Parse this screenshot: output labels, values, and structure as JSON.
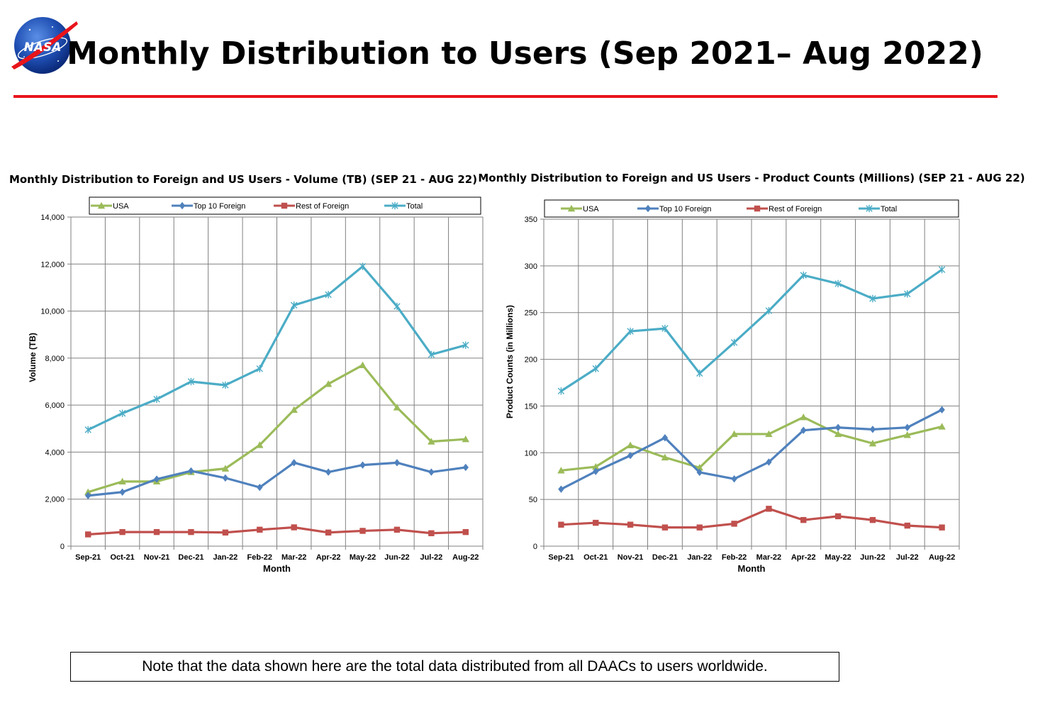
{
  "slide": {
    "title": "Monthly Distribution to Users (Sep 2021– Aug 2022)",
    "logo_text": "NASA",
    "note": "Note that the data shown here are the total data distributed from all DAACs to users worldwide.",
    "accent_color": "#e8141b"
  },
  "chart_data": [
    {
      "type": "line",
      "title": "Monthly Distribution to Foreign and US Users - Volume  (TB) (SEP 21 - AUG 22)",
      "xlabel": "Month",
      "ylabel": "Volume (TB)",
      "ylim": [
        0,
        14000
      ],
      "yticks": [
        0,
        2000,
        4000,
        6000,
        8000,
        10000,
        12000,
        14000
      ],
      "ytick_labels": [
        "0",
        "2,000",
        "4,000",
        "6,000",
        "8,000",
        "10,000",
        "12,000",
        "14,000"
      ],
      "grid": true,
      "legend_position": "top",
      "categories": [
        "Sep-21",
        "Oct-21",
        "Nov-21",
        "Dec-21",
        "Jan-22",
        "Feb-22",
        "Mar-22",
        "Apr-22",
        "May-22",
        "Jun-22",
        "Jul-22",
        "Aug-22"
      ],
      "series": [
        {
          "name": "USA",
          "color": "#9bbb59",
          "marker": "triangle",
          "values": [
            2300,
            2750,
            2750,
            3150,
            3300,
            4300,
            5800,
            6900,
            7700,
            5900,
            4450,
            4550
          ]
        },
        {
          "name": "Top  10 Foreign",
          "color": "#4f81bd",
          "marker": "diamond",
          "values": [
            2150,
            2300,
            2850,
            3200,
            2900,
            2500,
            3550,
            3150,
            3450,
            3550,
            3150,
            3350
          ]
        },
        {
          "name": "Rest of Foreign",
          "color": "#c0504d",
          "marker": "square",
          "values": [
            500,
            600,
            600,
            600,
            580,
            700,
            800,
            580,
            650,
            700,
            550,
            600
          ]
        },
        {
          "name": "Total",
          "color": "#4bacc6",
          "marker": "star",
          "values": [
            4950,
            5650,
            6250,
            7000,
            6850,
            7550,
            10250,
            10700,
            11900,
            10200,
            8150,
            8550
          ]
        }
      ]
    },
    {
      "type": "line",
      "title": "Monthly Distribution to Foreign and US Users - Product Counts (Millions) (SEP 21 - AUG 22)",
      "xlabel": "Month",
      "ylabel": "Product Counts (in Millions)",
      "ylim": [
        0,
        350
      ],
      "yticks": [
        0,
        50,
        100,
        150,
        200,
        250,
        300,
        350
      ],
      "ytick_labels": [
        "0",
        "50",
        "100",
        "150",
        "200",
        "250",
        "300",
        "350"
      ],
      "grid": true,
      "legend_position": "top",
      "categories": [
        "Sep-21",
        "Oct-21",
        "Nov-21",
        "Dec-21",
        "Jan-22",
        "Feb-22",
        "Mar-22",
        "Apr-22",
        "May-22",
        "Jun-22",
        "Jul-22",
        "Aug-22"
      ],
      "series": [
        {
          "name": "USA",
          "color": "#9bbb59",
          "marker": "triangle",
          "values": [
            81,
            85,
            108,
            95,
            84,
            120,
            120,
            138,
            120,
            110,
            119,
            128
          ]
        },
        {
          "name": "Top  10 Foreign",
          "color": "#4f81bd",
          "marker": "diamond",
          "values": [
            61,
            80,
            97,
            116,
            79,
            72,
            90,
            124,
            127,
            125,
            127,
            146
          ]
        },
        {
          "name": "Rest of Foreign",
          "color": "#c0504d",
          "marker": "square",
          "values": [
            23,
            25,
            23,
            20,
            20,
            24,
            40,
            28,
            32,
            28,
            22,
            20
          ]
        },
        {
          "name": "Total",
          "color": "#4bacc6",
          "marker": "star",
          "values": [
            166,
            190,
            230,
            233,
            185,
            218,
            252,
            290,
            281,
            265,
            270,
            296
          ]
        }
      ]
    }
  ]
}
